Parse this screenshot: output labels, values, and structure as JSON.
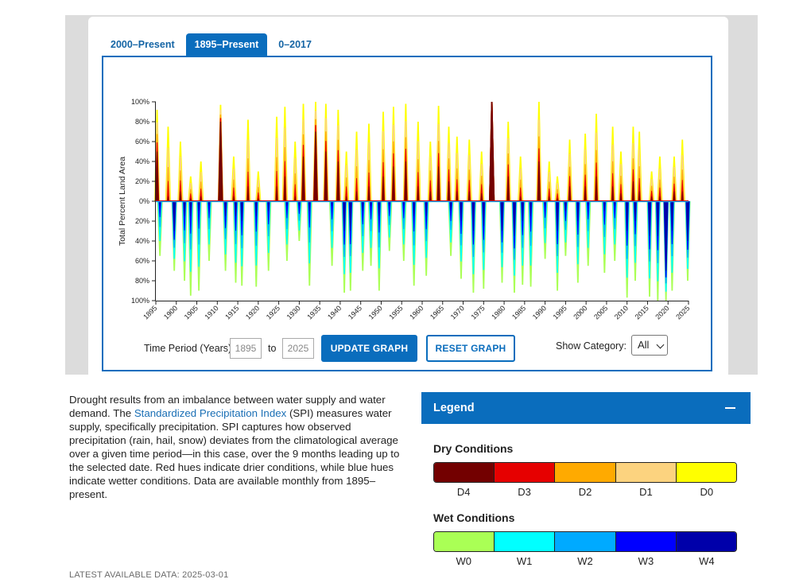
{
  "tabs": [
    {
      "label": "2000–Present",
      "active": false
    },
    {
      "label": "1895–Present",
      "active": true
    },
    {
      "label": "0–2017",
      "active": false
    }
  ],
  "chart_data": {
    "type": "area",
    "xlabel": "",
    "ylabel": "Total Percent Land Area",
    "xlim": [
      1895,
      2025
    ],
    "ylim": [
      -100,
      100
    ],
    "x_ticks": [
      "1895",
      "1900",
      "1905",
      "1910",
      "1915",
      "1920",
      "1925",
      "1930",
      "1935",
      "1940",
      "1945",
      "1950",
      "1955",
      "1960",
      "1965",
      "1970",
      "1975",
      "1980",
      "1985",
      "1990",
      "1995",
      "2000",
      "2005",
      "2010",
      "2015",
      "2020",
      "2025"
    ],
    "y_ticks": [
      {
        "value": 100,
        "label": "100%"
      },
      {
        "value": 80,
        "label": "80%"
      },
      {
        "value": 60,
        "label": "60%"
      },
      {
        "value": 40,
        "label": "40%"
      },
      {
        "value": 20,
        "label": "20%"
      },
      {
        "value": 0,
        "label": "0%"
      },
      {
        "value": -20,
        "label": "20%"
      },
      {
        "value": -40,
        "label": "40%"
      },
      {
        "value": -60,
        "label": "60%"
      },
      {
        "value": -80,
        "label": "80%"
      },
      {
        "value": -100,
        "label": "100%"
      }
    ],
    "dry_peaks": [
      {
        "year": 1895.3,
        "value": 92,
        "d4": 50
      },
      {
        "year": 1898,
        "value": 75,
        "d4": 5
      },
      {
        "year": 1901,
        "value": 60,
        "d4": 10
      },
      {
        "year": 1903.5,
        "value": 25,
        "d4": 3
      },
      {
        "year": 1906,
        "value": 40,
        "d4": 5
      },
      {
        "year": 1910.8,
        "value": 97,
        "d4": 80
      },
      {
        "year": 1914,
        "value": 45,
        "d4": 5
      },
      {
        "year": 1917.5,
        "value": 82,
        "d4": 15
      },
      {
        "year": 1920,
        "value": 30,
        "d4": 3
      },
      {
        "year": 1924.5,
        "value": 85,
        "d4": 15
      },
      {
        "year": 1926.5,
        "value": 95,
        "d4": 25
      },
      {
        "year": 1929,
        "value": 60,
        "d4": 5
      },
      {
        "year": 1931,
        "value": 98,
        "d4": 45
      },
      {
        "year": 1934,
        "value": 100,
        "d4": 70
      },
      {
        "year": 1936.5,
        "value": 98,
        "d4": 50
      },
      {
        "year": 1939.5,
        "value": 92,
        "d4": 40
      },
      {
        "year": 1941.5,
        "value": 50,
        "d4": 5
      },
      {
        "year": 1944,
        "value": 70,
        "d4": 10
      },
      {
        "year": 1947,
        "value": 78,
        "d4": 15
      },
      {
        "year": 1950.5,
        "value": 90,
        "d4": 25
      },
      {
        "year": 1953,
        "value": 95,
        "d4": 35
      },
      {
        "year": 1956,
        "value": 98,
        "d4": 40
      },
      {
        "year": 1959,
        "value": 80,
        "d4": 15
      },
      {
        "year": 1962,
        "value": 60,
        "d4": 10
      },
      {
        "year": 1964,
        "value": 96,
        "d4": 35
      },
      {
        "year": 1966.5,
        "value": 75,
        "d4": 20
      },
      {
        "year": 1968.5,
        "value": 65,
        "d4": 10
      },
      {
        "year": 1971.5,
        "value": 62,
        "d4": 10
      },
      {
        "year": 1974.5,
        "value": 50,
        "d4": 8
      },
      {
        "year": 1977,
        "value": 100,
        "d4": 100
      },
      {
        "year": 1981,
        "value": 80,
        "d4": 25
      },
      {
        "year": 1984,
        "value": 45,
        "d4": 5
      },
      {
        "year": 1988.5,
        "value": 100,
        "d4": 40
      },
      {
        "year": 1991,
        "value": 40,
        "d4": 5
      },
      {
        "year": 1993,
        "value": 25,
        "d4": 3
      },
      {
        "year": 1996,
        "value": 62,
        "d4": 15
      },
      {
        "year": 1999.8,
        "value": 68,
        "d4": 15
      },
      {
        "year": 2002.5,
        "value": 88,
        "d4": 25
      },
      {
        "year": 2006.5,
        "value": 75,
        "d4": 15
      },
      {
        "year": 2008.5,
        "value": 50,
        "d4": 8
      },
      {
        "year": 2011.5,
        "value": 75,
        "d4": 20
      },
      {
        "year": 2013,
        "value": 70,
        "d4": 10
      },
      {
        "year": 2016,
        "value": 30,
        "d4": 5
      },
      {
        "year": 2018,
        "value": 45,
        "d4": 5
      },
      {
        "year": 2021.5,
        "value": 45,
        "d4": 10
      },
      {
        "year": 2023.5,
        "value": 62,
        "d4": 10
      }
    ],
    "wet_peaks": [
      {
        "year": 1896,
        "value": 55,
        "w4": 5
      },
      {
        "year": 1899.5,
        "value": 70,
        "w4": 30
      },
      {
        "year": 1902,
        "value": 80,
        "w4": 15
      },
      {
        "year": 1903.5,
        "value": 95,
        "w4": 15
      },
      {
        "year": 1905.5,
        "value": 90,
        "w4": 10
      },
      {
        "year": 1908,
        "value": 60,
        "w4": 5
      },
      {
        "year": 1912,
        "value": 70,
        "w4": 15
      },
      {
        "year": 1914.5,
        "value": 82,
        "w4": 15
      },
      {
        "year": 1916,
        "value": 85,
        "w4": 20
      },
      {
        "year": 1919.5,
        "value": 86,
        "w4": 15
      },
      {
        "year": 1922.5,
        "value": 70,
        "w4": 10
      },
      {
        "year": 1927,
        "value": 60,
        "w4": 5
      },
      {
        "year": 1930,
        "value": 40,
        "w4": 5
      },
      {
        "year": 1932.5,
        "value": 85,
        "w4": 10
      },
      {
        "year": 1938,
        "value": 65,
        "w4": 5
      },
      {
        "year": 1941,
        "value": 92,
        "w4": 30
      },
      {
        "year": 1942.5,
        "value": 90,
        "w4": 30
      },
      {
        "year": 1945.5,
        "value": 70,
        "w4": 10
      },
      {
        "year": 1947.5,
        "value": 65,
        "w4": 5
      },
      {
        "year": 1949.5,
        "value": 90,
        "w4": 15
      },
      {
        "year": 1952,
        "value": 50,
        "w4": 5
      },
      {
        "year": 1955.5,
        "value": 60,
        "w4": 5
      },
      {
        "year": 1958,
        "value": 85,
        "w4": 15
      },
      {
        "year": 1961,
        "value": 75,
        "w4": 15
      },
      {
        "year": 1967,
        "value": 55,
        "w4": 10
      },
      {
        "year": 1969.5,
        "value": 78,
        "w4": 20
      },
      {
        "year": 1972.5,
        "value": 92,
        "w4": 30
      },
      {
        "year": 1975,
        "value": 88,
        "w4": 25
      },
      {
        "year": 1979.5,
        "value": 82,
        "w4": 30
      },
      {
        "year": 1982.5,
        "value": 92,
        "w4": 35
      },
      {
        "year": 1984.5,
        "value": 84,
        "w4": 20
      },
      {
        "year": 1986.5,
        "value": 86,
        "w4": 15
      },
      {
        "year": 1990,
        "value": 58,
        "w4": 5
      },
      {
        "year": 1993,
        "value": 90,
        "w4": 30
      },
      {
        "year": 1995,
        "value": 55,
        "w4": 10
      },
      {
        "year": 1998,
        "value": 82,
        "w4": 20
      },
      {
        "year": 2000.5,
        "value": 65,
        "w4": 5
      },
      {
        "year": 2004.5,
        "value": 72,
        "w4": 10
      },
      {
        "year": 2007,
        "value": 60,
        "w4": 5
      },
      {
        "year": 2010,
        "value": 97,
        "w4": 30
      },
      {
        "year": 2012,
        "value": 80,
        "w4": 20
      },
      {
        "year": 2015.5,
        "value": 96,
        "w4": 35
      },
      {
        "year": 2017.5,
        "value": 100,
        "w4": 35
      },
      {
        "year": 2019.5,
        "value": 100,
        "w4": 70
      },
      {
        "year": 2021,
        "value": 90,
        "w4": 30
      },
      {
        "year": 2024.8,
        "value": 80,
        "w4": 40
      }
    ]
  },
  "controls": {
    "time_period_label": "Time Period (Years):",
    "start_year": "1895",
    "to_label": "to",
    "end_year": "2025",
    "update_button": "UPDATE GRAPH",
    "reset_button": "RESET GRAPH",
    "show_category_label": "Show Category:",
    "show_category_value": "All"
  },
  "description": {
    "part1": "Drought results from an imbalance between water supply and water demand. The ",
    "link": "Standardized Precipitation Index",
    "part2": " (SPI) measures water supply, specifically precipitation. SPI captures how observed precipitation (rain, hail, snow) deviates from the climatological average over a given time period—in this case, over the 9 months leading up to the selected date. Red hues indicate drier conditions, while blue hues indicate wetter conditions. Data are available monthly from 1895–present."
  },
  "latest": "LATEST AVAILABLE DATA: 2025-03-01",
  "legend": {
    "title": "Legend",
    "dry_title": "Dry Conditions",
    "dry": [
      {
        "label": "D4",
        "color": "#730000"
      },
      {
        "label": "D3",
        "color": "#e60000"
      },
      {
        "label": "D2",
        "color": "#ffaa00"
      },
      {
        "label": "D1",
        "color": "#fcd37f"
      },
      {
        "label": "D0",
        "color": "#ffff00"
      }
    ],
    "wet_title": "Wet Conditions",
    "wet": [
      {
        "label": "W0",
        "color": "#aaff55"
      },
      {
        "label": "W1",
        "color": "#01ffff"
      },
      {
        "label": "W2",
        "color": "#00aaff"
      },
      {
        "label": "W3",
        "color": "#0000ff"
      },
      {
        "label": "W4",
        "color": "#0000aa"
      }
    ]
  }
}
